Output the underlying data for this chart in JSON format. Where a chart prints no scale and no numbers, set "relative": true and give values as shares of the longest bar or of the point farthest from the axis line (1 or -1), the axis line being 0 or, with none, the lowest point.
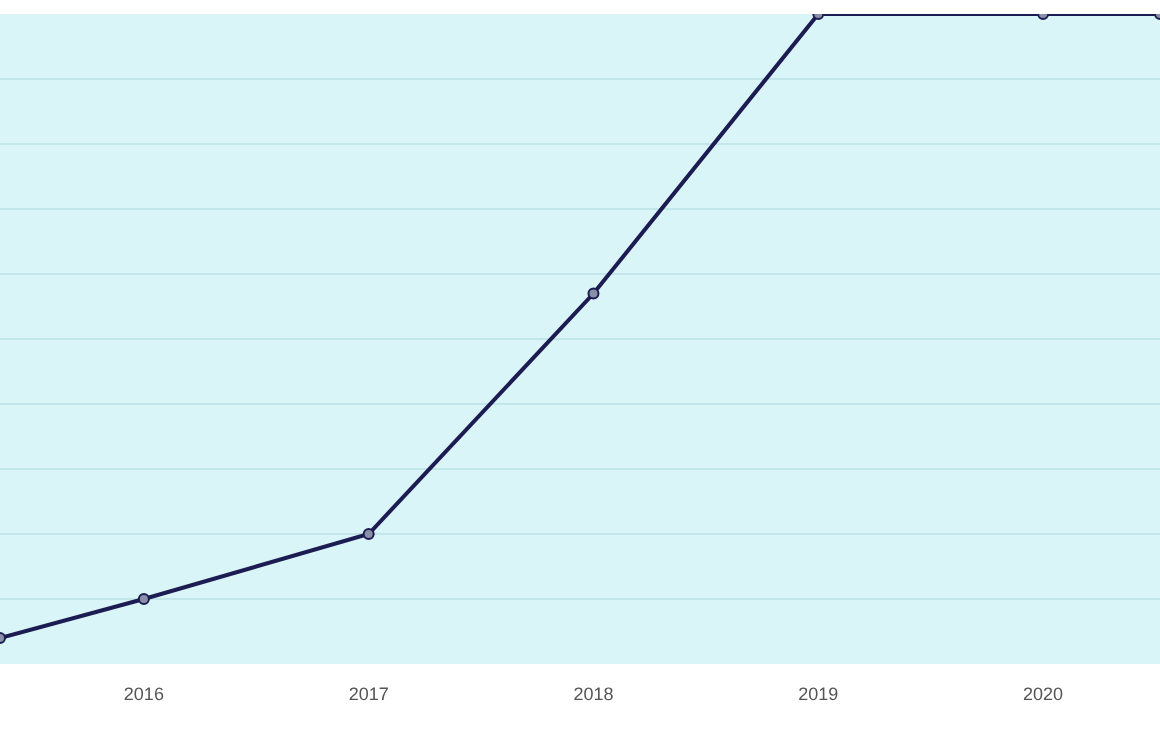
{
  "chart_data": {
    "type": "line",
    "relative": true,
    "x": [
      2015.36,
      2016,
      2017,
      2018,
      2019,
      2020,
      2020.52
    ],
    "xlim": [
      2015.36,
      2020.52
    ],
    "xticks": [
      2016,
      2017,
      2018,
      2019,
      2020
    ],
    "series": [
      {
        "color": "#1c1c52",
        "values": [
          0.04,
          0.1,
          0.2,
          0.57,
          1,
          1,
          1
        ]
      }
    ],
    "grid": "y",
    "marker": "circle",
    "line_style": "solid"
  }
}
